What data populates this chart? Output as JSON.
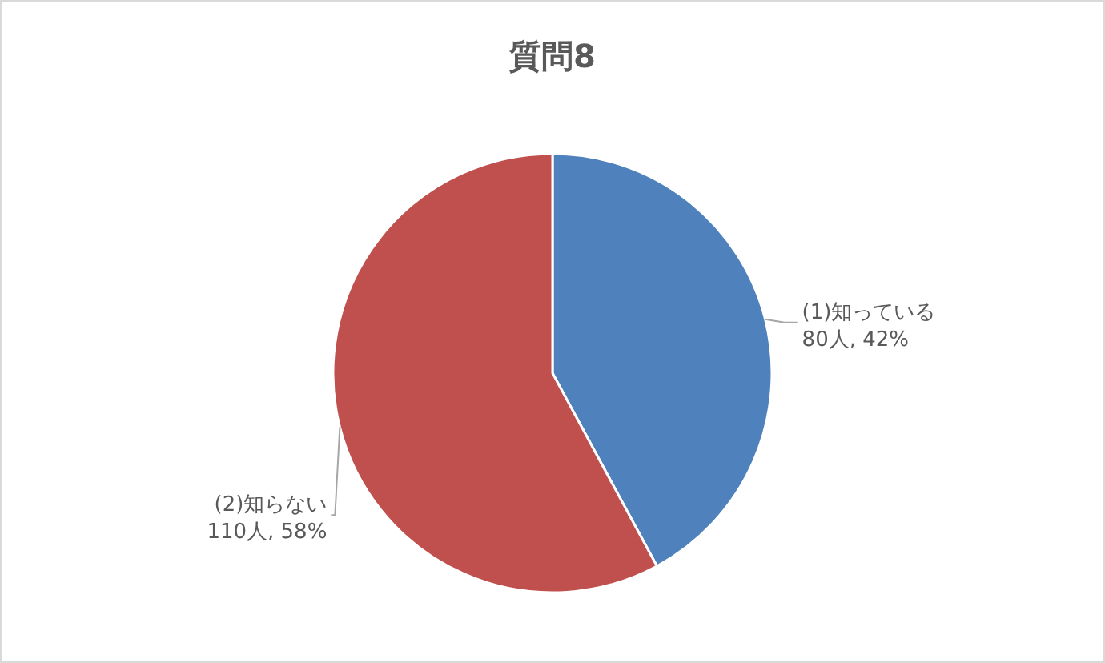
{
  "chart_data": {
    "type": "pie",
    "title": "質問8",
    "categories": [
      "(1)知っている",
      "(2)知らない"
    ],
    "values": [
      80,
      110
    ],
    "colors": [
      "#4f81bd",
      "#c0504d"
    ],
    "value_labels": [
      "80人, 42%",
      "110人, 58%"
    ]
  }
}
